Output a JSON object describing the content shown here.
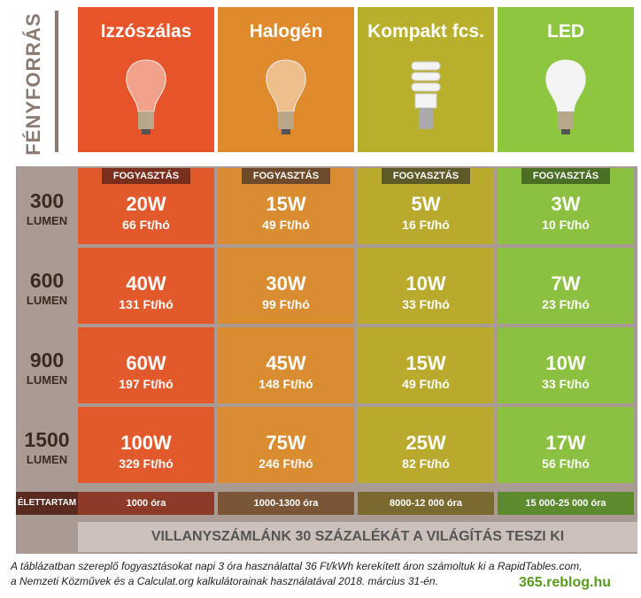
{
  "side_label": "FÉNYFORRÁS",
  "columns": [
    {
      "name": "Izzószálas"
    },
    {
      "name": "Halogén"
    },
    {
      "name": "Kompakt fcs."
    },
    {
      "name": "LED"
    }
  ],
  "consumption_label": "FOGYASZTÁS",
  "rows": [
    {
      "lumen": "300",
      "unit": "LUMEN",
      "cells": [
        {
          "power": "20W",
          "cost": "66 Ft/hó"
        },
        {
          "power": "15W",
          "cost": "49 Ft/hó"
        },
        {
          "power": "5W",
          "cost": "16 Ft/hó"
        },
        {
          "power": "3W",
          "cost": "10 Ft/hó"
        }
      ]
    },
    {
      "lumen": "600",
      "unit": "LUMEN",
      "cells": [
        {
          "power": "40W",
          "cost": "131 Ft/hó"
        },
        {
          "power": "30W",
          "cost": "99 Ft/hó"
        },
        {
          "power": "10W",
          "cost": "33 Ft/hó"
        },
        {
          "power": "7W",
          "cost": "23 Ft/hó"
        }
      ]
    },
    {
      "lumen": "900",
      "unit": "LUMEN",
      "cells": [
        {
          "power": "60W",
          "cost": "197 Ft/hó"
        },
        {
          "power": "45W",
          "cost": "148 Ft/hó"
        },
        {
          "power": "15W",
          "cost": "49 Ft/hó"
        },
        {
          "power": "10W",
          "cost": "33 Ft/hó"
        }
      ]
    },
    {
      "lumen": "1500",
      "unit": "LUMEN",
      "cells": [
        {
          "power": "100W",
          "cost": "329 Ft/hó"
        },
        {
          "power": "75W",
          "cost": "246 Ft/hó"
        },
        {
          "power": "25W",
          "cost": "82 Ft/hó"
        },
        {
          "power": "17W",
          "cost": "56 Ft/hó"
        }
      ]
    }
  ],
  "lifetime": {
    "label": "ÉLETTARTAM",
    "values": [
      "1000 óra",
      "1000-1300 óra",
      "8000-12 000 óra",
      "15 000-25 000 óra"
    ]
  },
  "banner": "VILLANYSZÁMLÁNK 30 SZÁZALÉKÁT A VILÁGÍTÁS TESZI KI",
  "footnote": [
    "A táblázatban szereplő fogyasztásokat napi 3 óra használattal 36 Ft/kWh kerekített áron számoltuk ki a RapidTables.com,",
    "a Nemzeti Közművek és a Calculat.org kalkulátorainak használatával 2018. március 31-én."
  ],
  "source": "365.reblog.hu"
}
